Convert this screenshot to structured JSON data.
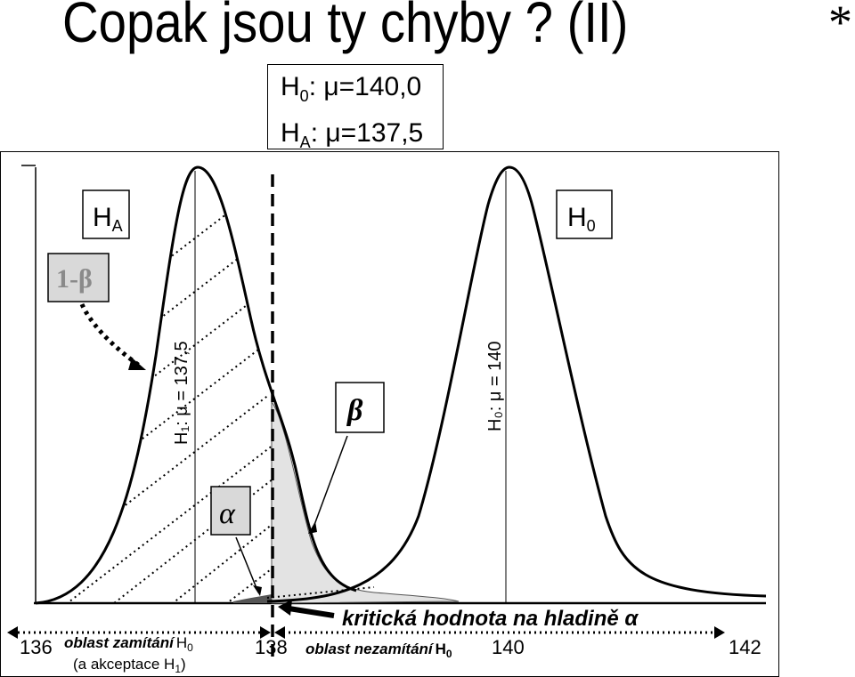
{
  "title": "Copak jsou ty chyby ? (II)",
  "corner_mark": "*",
  "hypotheses": {
    "h0": {
      "symbol": "H",
      "sub": "0",
      "text": ": μ=140,0"
    },
    "ha": {
      "symbol": "H",
      "sub": "A",
      "text": ": μ=137,5"
    }
  },
  "labels": {
    "ha_box": {
      "symbol": "H",
      "sub": "A"
    },
    "h0_box": {
      "symbol": "H",
      "sub": "0"
    },
    "one_minus_beta": "1-β",
    "beta": "β",
    "alpha": "α",
    "h1_axis": "H₁: μ = 137,5",
    "h0_axis": "H₀: μ = 140",
    "critical": "kritická hodnota na hladině α",
    "reject_region": "oblast zamítání",
    "reject_region_sub": "H",
    "reject_region_sub_idx": "0",
    "accept_h1": "(a akceptace H",
    "accept_h1_idx": "1",
    "accept_h1_end": ")",
    "nonreject_region": "oblast nezamítání",
    "nonreject_sub": "H",
    "nonreject_sub_idx": "0"
  },
  "axis_ticks": [
    "136",
    "138",
    "140",
    "142"
  ],
  "colors": {
    "beta_fill": "#e3e3e3",
    "label_box": "#d9d9d9",
    "label_text_gray": "#8a8a8a",
    "alpha_fill": "#555555"
  }
}
